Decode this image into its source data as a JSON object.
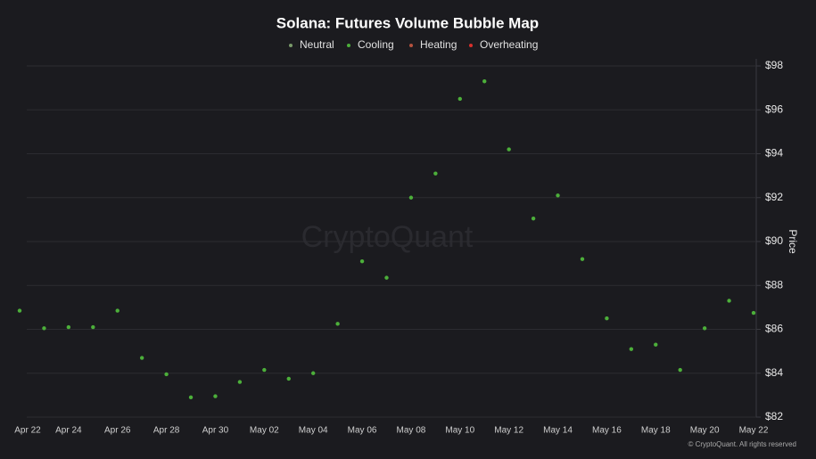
{
  "chart_data": {
    "type": "scatter",
    "title": "Solana: Futures Volume Bubble Map",
    "watermark": "CryptoQuant",
    "copyright": "© CryptoQuant. All rights reserved",
    "y_label": "Price",
    "categories": [
      "Apr 22",
      null,
      "Apr 24",
      null,
      "Apr 26",
      null,
      "Apr 28",
      null,
      "Apr 30",
      null,
      "May 02",
      null,
      "May 04",
      null,
      "May 06",
      null,
      "May 08",
      null,
      "May 10",
      null,
      "May 12",
      null,
      "May 14",
      null,
      "May 16",
      null,
      "May 18",
      null,
      "May 20",
      null,
      "May 22"
    ],
    "series": [
      {
        "name": "Neutral",
        "color": "#7a9a6a",
        "values": [
          null,
          null,
          null,
          null,
          null,
          null,
          null,
          null,
          null,
          null,
          null,
          null,
          null,
          null,
          null,
          null,
          null,
          null,
          null,
          null,
          null,
          null,
          null,
          null,
          null,
          null,
          null,
          null,
          null,
          null,
          null
        ]
      },
      {
        "name": "Cooling",
        "color": "#4caf3a",
        "values": [
          86.85,
          86.05,
          86.1,
          86.1,
          86.85,
          84.7,
          83.95,
          82.9,
          82.95,
          83.6,
          84.15,
          83.75,
          84.0,
          86.25,
          89.1,
          88.35,
          92.0,
          93.1,
          96.5,
          97.3,
          94.2,
          91.05,
          92.1,
          89.2,
          86.5,
          85.1,
          85.3,
          84.15,
          86.05,
          87.3,
          86.75
        ]
      },
      {
        "name": "Heating",
        "color": "#b5523f",
        "values": [
          null,
          null,
          null,
          null,
          null,
          null,
          null,
          null,
          null,
          null,
          null,
          null,
          null,
          null,
          null,
          null,
          null,
          null,
          null,
          null,
          null,
          null,
          null,
          null,
          null,
          null,
          null,
          null,
          null,
          null,
          null
        ]
      },
      {
        "name": "Overheating",
        "color": "#d9302c",
        "values": [
          null,
          null,
          null,
          null,
          null,
          null,
          null,
          null,
          null,
          null,
          null,
          null,
          null,
          null,
          null,
          null,
          null,
          null,
          null,
          null,
          null,
          null,
          null,
          null,
          null,
          null,
          null,
          null,
          null,
          null,
          null
        ]
      }
    ],
    "ylim": [
      82,
      98
    ],
    "yticks": [
      {
        "value": 82,
        "label": "$82"
      },
      {
        "value": 84,
        "label": "$84"
      },
      {
        "value": 86,
        "label": "$86"
      },
      {
        "value": 88,
        "label": "$88"
      },
      {
        "value": 90,
        "label": "$90"
      },
      {
        "value": 92,
        "label": "$92"
      },
      {
        "value": 94,
        "label": "$94"
      },
      {
        "value": 96,
        "label": "$96"
      },
      {
        "value": 98,
        "label": "$98"
      }
    ],
    "grid": true
  }
}
